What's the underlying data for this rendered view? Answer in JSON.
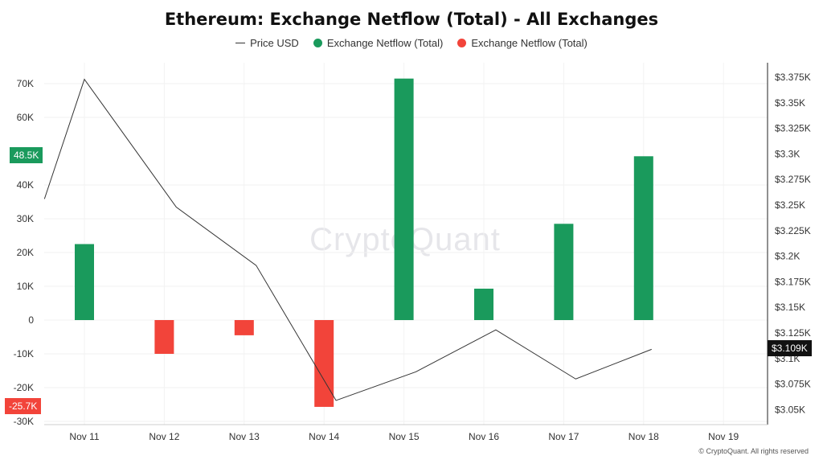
{
  "colors": {
    "positive": "#1a9a5c",
    "negative": "#f2443a",
    "price_line": "#333333",
    "price_badge": "#111111"
  },
  "legend": {
    "price": "Price USD",
    "inflow": "Exchange Netflow (Total)",
    "outflow": "Exchange Netflow (Total)"
  },
  "watermark": "CryptoQuant",
  "copyright": "© CryptoQuant. All rights reserved",
  "chart_data": {
    "type": "bar",
    "title": "Ethereum: Exchange Netflow (Total) - All Exchanges",
    "categories": [
      "Nov 11",
      "Nov 12",
      "Nov 13",
      "Nov 14",
      "Nov 15",
      "Nov 16",
      "Nov 17",
      "Nov 18",
      "Nov 19"
    ],
    "series": [
      {
        "name": "Exchange Netflow (Total)",
        "kind": "bar",
        "axis": "left",
        "values": [
          22500,
          -10000,
          -4500,
          -25700,
          71500,
          9300,
          28500,
          48500,
          null
        ]
      },
      {
        "name": "Price USD",
        "kind": "line",
        "axis": "right",
        "x": [
          10.5,
          11,
          12.15,
          13.15,
          14.15,
          15.15,
          16.15,
          17.15,
          18.1
        ],
        "values": [
          3256,
          3373,
          3248,
          3191,
          3059,
          3087,
          3128,
          3080,
          3109
        ]
      }
    ],
    "y_left": {
      "ylim": [
        -30000,
        75000
      ],
      "ticks": [
        70000,
        60000,
        40000,
        30000,
        20000,
        10000,
        0,
        -10000,
        -20000,
        -30000
      ],
      "tick_labels": [
        "70K",
        "60K",
        "40K",
        "30K",
        "20K",
        "10K",
        "0",
        "-10K",
        "-20K",
        "-30K"
      ]
    },
    "y_right": {
      "ylim": [
        3050,
        3387
      ],
      "ticks": [
        3375,
        3350,
        3325,
        3300,
        3275,
        3250,
        3225,
        3200,
        3175,
        3150,
        3125,
        3100,
        3075,
        3050
      ],
      "tick_labels": [
        "$3.375K",
        "$3.35K",
        "$3.325K",
        "$3.3K",
        "$3.275K",
        "$3.25K",
        "$3.225K",
        "$3.2K",
        "$3.175K",
        "$3.15K",
        "$3.125K",
        "$3.1K",
        "$3.075K",
        "$3.05K"
      ]
    },
    "badges": {
      "last_netflow": "48.5K",
      "last_netflow_value": 48500,
      "min_netflow": "-25.7K",
      "min_netflow_value": -25700,
      "last_price": "$3.109K",
      "last_price_value": 3109
    },
    "grid": true
  }
}
